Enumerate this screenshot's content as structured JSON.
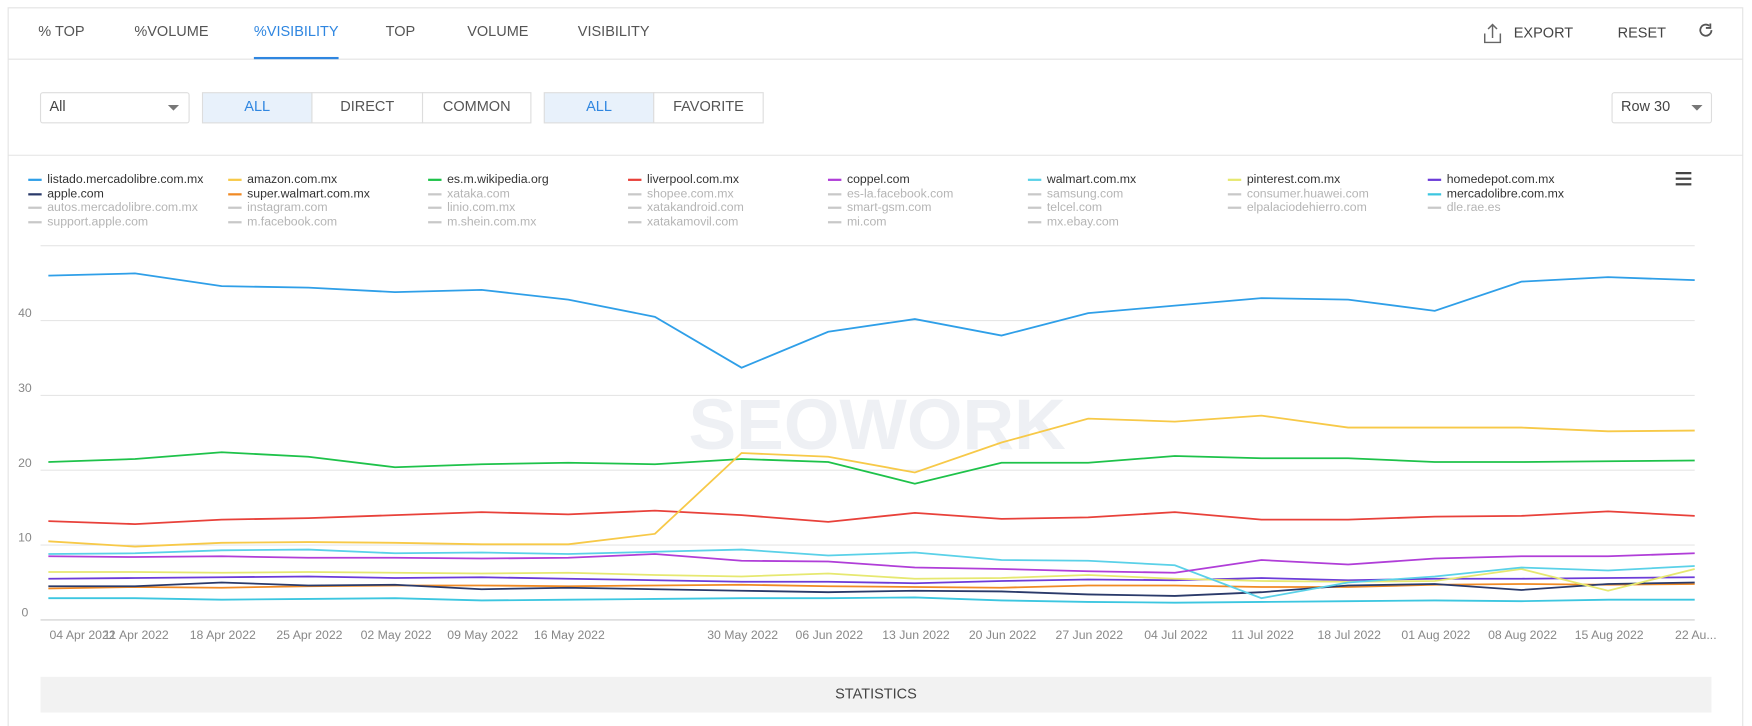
{
  "tabs": {
    "items": [
      "% TOP",
      "%VOLUME",
      "%VISIBILITY",
      "TOP",
      "VOLUME",
      "VISIBILITY"
    ],
    "active": 2
  },
  "actions": [
    "EXPORT",
    "RESET"
  ],
  "dropdown": "All",
  "filters": [
    {
      "options": [
        "ALL",
        "DIRECT",
        "COMMON"
      ],
      "selected": 0
    },
    {
      "options": [
        "ALL",
        "FAVORITE"
      ],
      "selected": 0
    }
  ],
  "rows": "Row 30",
  "statistics": "STATISTICS",
  "chart_data": {
    "type": "line",
    "watermark": "SEOWORK",
    "categories": [
      "04 Apr 2022",
      "11 Apr 2022",
      "18 Apr 2022",
      "25 Apr 2022",
      "02 May 2022",
      "09 May 2022",
      "16 May 2022",
      null,
      "30 May 2022",
      "06 Jun 2022",
      "13 Jun 2022",
      "20 Jun 2022",
      "27 Jun 2022",
      "04 Jul 2022",
      "11 Jul 2022",
      "18 Jul 2022",
      "01 Aug 2022",
      "08 Aug 2022",
      "15 Aug 2022",
      "22 Au..."
    ],
    "ylim": [
      0,
      50
    ],
    "yticks": [
      0,
      10,
      20,
      30,
      40
    ],
    "grid": true,
    "series": [
      {
        "name": "listado.mercadolibre.com.mx",
        "color": "#2f9fe8",
        "values": [
          46,
          46.3,
          44.6,
          44.4,
          43.8,
          44.1,
          42.8,
          40.5,
          33.7,
          38.5,
          40.2,
          38,
          41,
          42,
          43,
          42.8,
          41.3,
          45.2,
          45.8,
          45.4
        ]
      },
      {
        "name": "amazon.com.mx",
        "color": "#f7c948",
        "values": [
          10.5,
          9.8,
          10.3,
          10.4,
          10.3,
          10.1,
          10.1,
          11.5,
          22.3,
          21.8,
          19.7,
          23.7,
          26.9,
          26.5,
          27.3,
          25.7,
          25.7,
          25.7,
          25.2,
          25.3
        ]
      },
      {
        "name": "es.m.wikipedia.org",
        "color": "#1ec24a",
        "values": [
          21.1,
          21.5,
          22.4,
          21.8,
          20.4,
          20.8,
          21,
          20.8,
          21.5,
          21.1,
          18.2,
          21,
          21,
          21.9,
          21.6,
          21.6,
          21.1,
          21.1,
          21.2,
          21.3
        ]
      },
      {
        "name": "liverpool.com.mx",
        "color": "#e8413a",
        "values": [
          13.2,
          12.8,
          13.4,
          13.6,
          14,
          14.4,
          14.1,
          14.6,
          14,
          13.1,
          14.3,
          13.5,
          13.7,
          14.4,
          13.4,
          13.4,
          13.8,
          13.9,
          14.5,
          13.9
        ]
      },
      {
        "name": "coppel.com",
        "color": "#b03ed8",
        "values": [
          8.5,
          8.4,
          8.5,
          8.3,
          8.3,
          8.2,
          8.3,
          8.8,
          7.9,
          7.8,
          7,
          6.8,
          6.5,
          6.3,
          8,
          7.4,
          8.2,
          8.5,
          8.5,
          8.9
        ]
      },
      {
        "name": "walmart.com.mx",
        "color": "#5ad1e8",
        "values": [
          8.8,
          8.9,
          9.3,
          9.4,
          8.9,
          9,
          8.8,
          9.1,
          9.4,
          8.6,
          9,
          8,
          7.9,
          7.3,
          2.9,
          5,
          5.8,
          7,
          6.6,
          7.2
        ]
      },
      {
        "name": "pinterest.com.mx",
        "color": "#e6e870",
        "values": [
          6.4,
          6.4,
          6.3,
          6.4,
          6.3,
          6.2,
          6.3,
          6,
          5.8,
          6.2,
          5.5,
          5.6,
          6,
          5.5,
          5.2,
          5.1,
          5.2,
          6.8,
          3.9,
          6.8
        ]
      },
      {
        "name": "homedepot.com.mx",
        "color": "#6c3cd8",
        "values": [
          5.5,
          5.6,
          5.7,
          5.8,
          5.6,
          5.7,
          5.5,
          5.3,
          5.1,
          5.1,
          4.9,
          5.2,
          5.4,
          5.3,
          5.6,
          5.3,
          5.5,
          5.5,
          5.6,
          5.7
        ]
      },
      {
        "name": "apple.com",
        "color": "#2a3a6a",
        "values": [
          4.5,
          4.5,
          5,
          4.6,
          4.7,
          4.1,
          4.3,
          4.1,
          3.9,
          3.7,
          3.9,
          3.8,
          3.4,
          3.2,
          3.7,
          4.6,
          4.8,
          4,
          4.8,
          5
        ]
      },
      {
        "name": "super.walmart.com.mx",
        "color": "#f08a24",
        "values": [
          4.2,
          4.4,
          4.3,
          4.5,
          4.6,
          4.6,
          4.5,
          4.6,
          4.7,
          4.5,
          4.4,
          4.3,
          4.6,
          4.6,
          4.4,
          4.4,
          4.7,
          4.8,
          4.7,
          4.8
        ]
      },
      {
        "name": "xataka.com",
        "hidden": true
      },
      {
        "name": "shopee.com.mx",
        "hidden": true
      },
      {
        "name": "es-la.facebook.com",
        "hidden": true
      },
      {
        "name": "samsung.com",
        "hidden": true
      },
      {
        "name": "consumer.huawei.com",
        "hidden": true
      },
      {
        "name": "mercadolibre.com.mx",
        "color": "#3cc6e0",
        "values": [
          2.9,
          2.9,
          2.7,
          2.8,
          2.9,
          2.6,
          2.7,
          2.8,
          2.9,
          2.9,
          3,
          2.6,
          2.4,
          2.3,
          2.4,
          2.5,
          2.6,
          2.5,
          2.7,
          2.7
        ]
      },
      {
        "name": "autos.mercadolibre.com.mx",
        "hidden": true
      },
      {
        "name": "instagram.com",
        "hidden": true
      },
      {
        "name": "linio.com.mx",
        "hidden": true
      },
      {
        "name": "xatakandroid.com",
        "hidden": true
      },
      {
        "name": "smart-gsm.com",
        "hidden": true
      },
      {
        "name": "telcel.com",
        "hidden": true
      },
      {
        "name": "elpalaciodehierro.com",
        "hidden": true
      },
      {
        "name": "dle.rae.es",
        "hidden": true
      },
      {
        "name": "support.apple.com",
        "hidden": true
      },
      {
        "name": "m.facebook.com",
        "hidden": true
      },
      {
        "name": "m.shein.com.mx",
        "hidden": true
      },
      {
        "name": "xatakamovil.com",
        "hidden": true
      },
      {
        "name": "mi.com",
        "hidden": true
      },
      {
        "name": "mx.ebay.com",
        "hidden": true
      }
    ]
  }
}
